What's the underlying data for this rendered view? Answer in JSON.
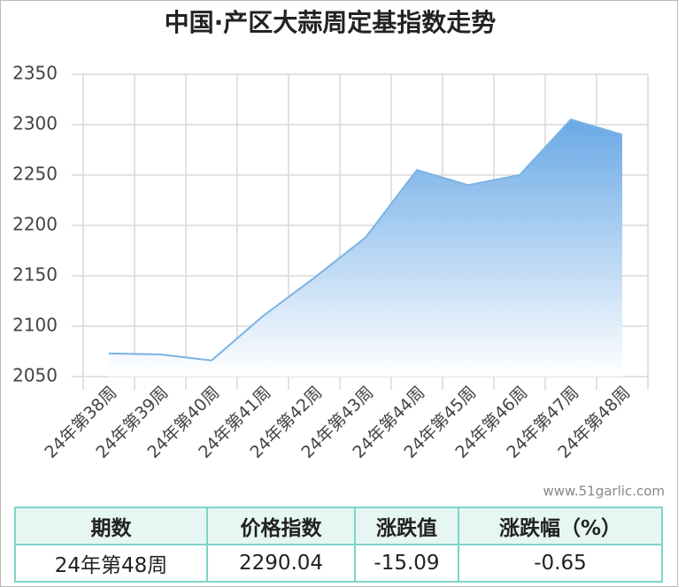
{
  "chart_data": {
    "type": "area",
    "title": "中国·产区大蒜周定基指数走势",
    "categories": [
      "24年第38周",
      "24年第39周",
      "24年第40周",
      "24年第41周",
      "24年第42周",
      "24年第43周",
      "24年第44周",
      "24年第45周",
      "24年第46周",
      "24年第47周",
      "24年第48周"
    ],
    "values": [
      2073,
      2072,
      2066,
      2110,
      2148,
      2188,
      2255,
      2240,
      2250,
      2305.13,
      2290.04
    ],
    "color": "#7ab3e4",
    "ylim": [
      2050,
      2350
    ],
    "yticks": [
      2050,
      2100,
      2150,
      2200,
      2250,
      2300,
      2350
    ],
    "grid": true,
    "watermark": "www.51garlic.com"
  },
  "table": {
    "header": [
      "期数",
      "价格指数",
      "涨跌值",
      "涨跌幅（%）"
    ],
    "rows": [
      [
        "24年第48周",
        "2290.04",
        "-15.09",
        "-0.65"
      ]
    ]
  }
}
